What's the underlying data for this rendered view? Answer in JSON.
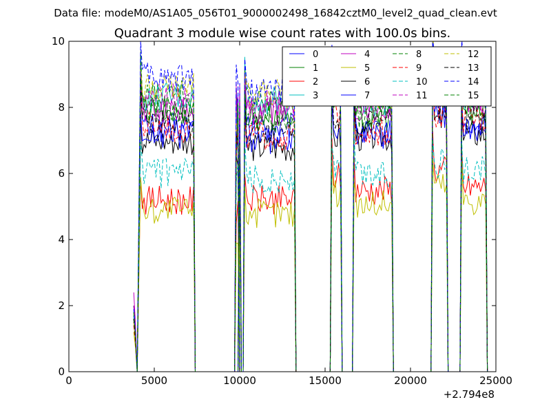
{
  "suptitle": "Data file: modeM0/AS1A05_056T01_9000002498_16842cztM0_level2_quad_clean.evt",
  "chart_data": {
    "type": "line",
    "title": "Quadrant 3 module wise count rates with 100.0s bins.",
    "xlabel": "",
    "ylabel": "",
    "xlim": [
      0,
      25000
    ],
    "ylim": [
      0,
      10
    ],
    "x_offset_label": "+2.794e8",
    "xticks": [
      0,
      5000,
      10000,
      15000,
      20000,
      25000
    ],
    "xtick_labels": [
      "0",
      "5000",
      "10000",
      "15000",
      "20000",
      "25000"
    ],
    "yticks": [
      0,
      2,
      4,
      6,
      8,
      10
    ],
    "ytick_labels": [
      "0",
      "2",
      "4",
      "6",
      "8",
      "10"
    ],
    "grid": false,
    "legend_position": "top-right",
    "legend_columns": 4,
    "bin_seconds": 100,
    "segments": [
      {
        "start": 3900,
        "end": 4000,
        "x": [
          3800,
          3900
        ]
      },
      {
        "start": 4200,
        "end": 7300
      },
      {
        "start": 9800,
        "end": 9900
      },
      {
        "start": 10000,
        "end": 10000
      },
      {
        "start": 10300,
        "end": 13200
      },
      {
        "start": 15400,
        "end": 15900
      },
      {
        "start": 16700,
        "end": 18900
      },
      {
        "start": 21300,
        "end": 22100
      },
      {
        "start": 23000,
        "end": 24400
      }
    ],
    "series": [
      {
        "name": "0",
        "color": "#0000ff",
        "dash": "solid",
        "levels": [
          2.0,
          7.4,
          9.4,
          9.0,
          7.4,
          8.6,
          7.2,
          8.2,
          7.3
        ]
      },
      {
        "name": "1",
        "color": "#008000",
        "dash": "solid",
        "levels": [
          1.7,
          7.9,
          8.4,
          8.2,
          7.8,
          8.4,
          7.7,
          8.5,
          7.9
        ]
      },
      {
        "name": "2",
        "color": "#ff0000",
        "dash": "solid",
        "levels": [
          1.5,
          5.2,
          5.6,
          5.5,
          5.2,
          5.9,
          5.5,
          6.1,
          5.6
        ]
      },
      {
        "name": "3",
        "color": "#00bfbf",
        "dash": "solid",
        "levels": [
          1.8,
          8.3,
          8.3,
          8.4,
          8.2,
          8.6,
          8.1,
          8.7,
          8.3
        ]
      },
      {
        "name": "4",
        "color": "#bf00bf",
        "dash": "solid",
        "levels": [
          2.4,
          7.9,
          8.1,
          8.3,
          7.9,
          8.4,
          7.9,
          8.6,
          8.1
        ]
      },
      {
        "name": "5",
        "color": "#bfbf00",
        "dash": "solid",
        "levels": [
          1.2,
          4.9,
          5.0,
          4.9,
          4.8,
          5.4,
          5.1,
          5.7,
          5.2
        ]
      },
      {
        "name": "6",
        "color": "#000000",
        "dash": "solid",
        "levels": [
          1.6,
          7.0,
          7.5,
          7.0,
          6.8,
          7.1,
          7.1,
          7.6,
          7.2
        ]
      },
      {
        "name": "7",
        "color": "#0000ff",
        "dash": "solid",
        "levels": [
          1.6,
          7.2,
          7.6,
          7.2,
          7.0,
          7.2,
          7.2,
          7.8,
          7.4
        ]
      },
      {
        "name": "8",
        "color": "#008000",
        "dash": "dashed",
        "levels": [
          2.0,
          8.4,
          8.6,
          8.5,
          8.3,
          8.9,
          8.3,
          8.9,
          8.5
        ]
      },
      {
        "name": "9",
        "color": "#ff0000",
        "dash": "dashed",
        "levels": [
          1.4,
          7.4,
          7.6,
          7.5,
          7.1,
          7.7,
          7.3,
          7.8,
          7.6
        ]
      },
      {
        "name": "10",
        "color": "#00bfbf",
        "dash": "dashed",
        "levels": [
          1.7,
          6.0,
          6.1,
          6.0,
          5.8,
          6.1,
          6.0,
          6.3,
          6.1
        ]
      },
      {
        "name": "11",
        "color": "#bf00bf",
        "dash": "dashed",
        "levels": [
          2.0,
          8.3,
          8.5,
          8.4,
          8.1,
          8.6,
          8.1,
          8.9,
          8.3
        ]
      },
      {
        "name": "12",
        "color": "#bfbf00",
        "dash": "dashed",
        "levels": [
          1.5,
          8.6,
          9.0,
          8.8,
          8.4,
          8.9,
          8.4,
          9.2,
          8.7
        ]
      },
      {
        "name": "13",
        "color": "#000000",
        "dash": "dashed",
        "levels": [
          1.6,
          7.6,
          7.8,
          7.6,
          7.3,
          7.8,
          7.5,
          8.0,
          7.7
        ]
      },
      {
        "name": "14",
        "color": "#0000ff",
        "dash": "dashed",
        "levels": [
          1.9,
          8.9,
          9.2,
          9.0,
          8.5,
          9.0,
          8.6,
          9.3,
          8.9
        ]
      },
      {
        "name": "15",
        "color": "#008000",
        "dash": "dashed",
        "levels": [
          1.8,
          7.9,
          8.1,
          8.0,
          7.7,
          8.1,
          7.8,
          8.4,
          8.0
        ]
      }
    ]
  }
}
